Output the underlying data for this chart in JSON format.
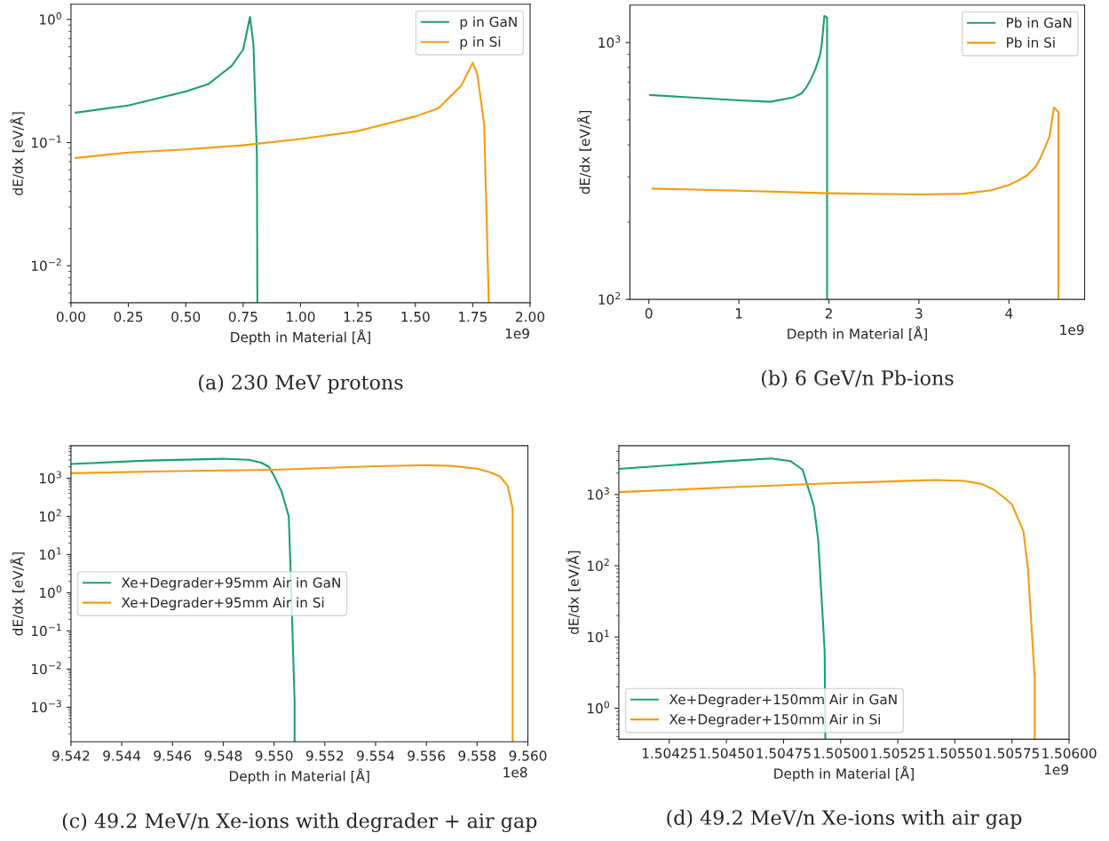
{
  "chart_data": [
    {
      "type": "line",
      "title": "(a) 230 MeV protons",
      "xlabel": "Depth in Material [Å]",
      "ylabel": "dE/dx [eV/Å]",
      "annotations": [
        "1e9"
      ],
      "log": "y",
      "grid": false,
      "legend": "top right",
      "xlim": [
        0,
        2
      ],
      "xticks": [
        {
          "value": 0,
          "label": "0.00"
        },
        0.25,
        {
          "value": 0.5,
          "label": "0.50"
        },
        0.75,
        {
          "value": 1,
          "label": "1.00"
        },
        1.25,
        {
          "value": 1.5,
          "label": "1.50"
        },
        1.75,
        {
          "value": 2,
          "label": "2.00"
        }
      ],
      "ylim": [
        0.005,
        1.33
      ],
      "yticks": [
        {
          "value": 0.01,
          "label": "10$^{−2}$"
        },
        {
          "value": 0.1,
          "label": "10$^{−1}$"
        },
        {
          "value": 1,
          "label": "10$^{0}$"
        }
      ],
      "series": [
        {
          "name": "p in GaN",
          "color": "#1b9e77",
          "x": [
            0.02,
            0.25,
            0.5,
            0.6,
            0.7,
            0.75,
            0.78,
            0.795,
            0.81,
            0.812
          ],
          "values": [
            0.175,
            0.2,
            0.26,
            0.3,
            0.42,
            0.57,
            1.05,
            0.62,
            0.078,
            0.005
          ]
        },
        {
          "name": "p in Si",
          "color": "#f39c12",
          "x": [
            0.02,
            0.25,
            0.5,
            0.75,
            1.0,
            1.25,
            1.5,
            1.6,
            1.7,
            1.75,
            1.77,
            1.8,
            1.82
          ],
          "values": [
            0.075,
            0.083,
            0.088,
            0.095,
            0.107,
            0.124,
            0.163,
            0.19,
            0.29,
            0.445,
            0.36,
            0.14,
            0.005
          ]
        }
      ]
    },
    {
      "type": "line",
      "title": "(b) 6 GeV/n Pb-ions",
      "xlabel": "Depth in Material [Å]",
      "ylabel": "dE/dx [eV/Å]",
      "annotations": [
        "1e9"
      ],
      "log": "y",
      "grid": false,
      "legend": "top right",
      "xlim": [
        -0.21,
        4.84
      ],
      "xticks": [
        0,
        1,
        2,
        3,
        4
      ],
      "ylim": [
        100,
        1400
      ],
      "yticks": [
        {
          "value": 100,
          "label": "10$^{2}$"
        },
        {
          "value": 1000,
          "label": "10$^{3}$"
        }
      ],
      "series": [
        {
          "name": "Pb in GaN",
          "color": "#1b9e77",
          "x": [
            0.01,
            1.0,
            1.35,
            1.6,
            1.7,
            1.75,
            1.8,
            1.85,
            1.9,
            1.92,
            1.95,
            1.98,
            1.98
          ],
          "values": [
            625,
            596,
            588,
            611,
            635,
            670,
            720,
            788,
            890,
            980,
            1270,
            1250,
            100
          ]
        },
        {
          "name": "Pb in Si",
          "color": "#f39c12",
          "x": [
            0.04,
            1.0,
            2.0,
            3.0,
            3.5,
            3.8,
            4.0,
            4.1,
            4.2,
            4.3,
            4.35,
            4.4,
            4.45,
            4.5,
            4.55,
            4.55
          ],
          "values": [
            270,
            265,
            259,
            256,
            258,
            266,
            279,
            290,
            304,
            330,
            356,
            390,
            431,
            559,
            536,
            100
          ]
        }
      ]
    },
    {
      "type": "line",
      "title": "(c) 49.2 MeV/n Xe-ions with degrader + air gap",
      "xlabel": "Depth in Material [Å]",
      "ylabel": "dE/dx [eV/Å]",
      "annotations": [
        "1e8"
      ],
      "log": "y",
      "grid": false,
      "legend": "center left",
      "xlim": [
        9.542,
        9.56
      ],
      "xticks": [
        9.542,
        9.544,
        9.546,
        9.548,
        {
          "value": 9.55,
          "label": "9.550"
        },
        9.552,
        9.554,
        9.556,
        9.558,
        {
          "value": 9.56,
          "label": "9.560"
        }
      ],
      "ylim": [
        0.000124,
        7100
      ],
      "yticks": [
        {
          "value": 0.001,
          "label": "10$^{−3}$"
        },
        {
          "value": 0.01,
          "label": "10$^{−2}$"
        },
        {
          "value": 0.1,
          "label": "10$^{−1}$"
        },
        {
          "value": 1,
          "label": "10$^{0}$"
        },
        {
          "value": 10,
          "label": "10$^{1}$"
        },
        {
          "value": 100,
          "label": "10$^{2}$"
        },
        {
          "value": 1000,
          "label": "10$^{3}$"
        }
      ],
      "series": [
        {
          "name": "Xe+Degrader+95mm Air in GaN",
          "color": "#1b9e77",
          "x": [
            9.542,
            9.545,
            9.548,
            9.549,
            9.5495,
            9.5498,
            9.55,
            9.5503,
            9.55058,
            9.55064,
            9.55081,
            9.55081
          ],
          "values": [
            2350,
            2900,
            3230,
            3030,
            2550,
            1980,
            1160,
            445,
            100,
            6.9,
            0.0014,
            0.000124
          ]
        },
        {
          "name": "Xe+Degrader+95mm Air in Si",
          "color": "#f39c12",
          "x": [
            9.542,
            9.546,
            9.55,
            9.554,
            9.556,
            9.557,
            9.558,
            9.5585,
            9.5589,
            9.5592,
            9.5594,
            9.5594
          ],
          "values": [
            1350,
            1530,
            1670,
            2060,
            2200,
            2100,
            1780,
            1440,
            1110,
            640,
            160,
            0.000124
          ]
        }
      ]
    },
    {
      "type": "line",
      "title": "(d) 49.2 MeV/n Xe-ions with air gap",
      "xlabel": "Depth in Material [Å]",
      "ylabel": "dE/dx [eV/Å]",
      "annotations": [
        "1e9"
      ],
      "log": "y",
      "grid": false,
      "legend": "bottom left",
      "xlim": [
        1.504029,
        1.506
      ],
      "xticks": [
        1.50425,
        {
          "value": 1.5045,
          "label": "1.50450"
        },
        1.50475,
        {
          "value": 1.505,
          "label": "1.50500"
        },
        1.50525,
        {
          "value": 1.5055,
          "label": "1.50550"
        },
        1.50575,
        {
          "value": 1.506,
          "label": "1.50600"
        }
      ],
      "ylim": [
        0.367,
        4840
      ],
      "yticks": [
        {
          "value": 1,
          "label": "10$^{0}$"
        },
        {
          "value": 10,
          "label": "10$^{1}$"
        },
        {
          "value": 100,
          "label": "10$^{2}$"
        },
        {
          "value": 1000,
          "label": "10$^{3}$"
        }
      ],
      "series": [
        {
          "name": "Xe+Degrader+150mm Air in GaN",
          "color": "#1b9e77",
          "x": [
            1.504029,
            1.50451,
            1.504695,
            1.50478,
            1.504833,
            1.504883,
            1.504902,
            1.50493,
            1.504933
          ],
          "values": [
            2290,
            2950,
            3200,
            2950,
            2240,
            684,
            229,
            6.3,
            0.367
          ]
        },
        {
          "name": "Xe+Degrader+150mm Air in Si",
          "color": "#f39c12",
          "x": [
            1.504029,
            1.50451,
            1.504972,
            1.505417,
            1.505541,
            1.505619,
            1.50567,
            1.50572,
            1.50575,
            1.5058,
            1.50582,
            1.50585,
            1.50585
          ],
          "values": [
            1080,
            1260,
            1445,
            1600,
            1550,
            1400,
            1175,
            880,
            725,
            305,
            91,
            2.5,
            0.367
          ]
        }
      ]
    }
  ]
}
